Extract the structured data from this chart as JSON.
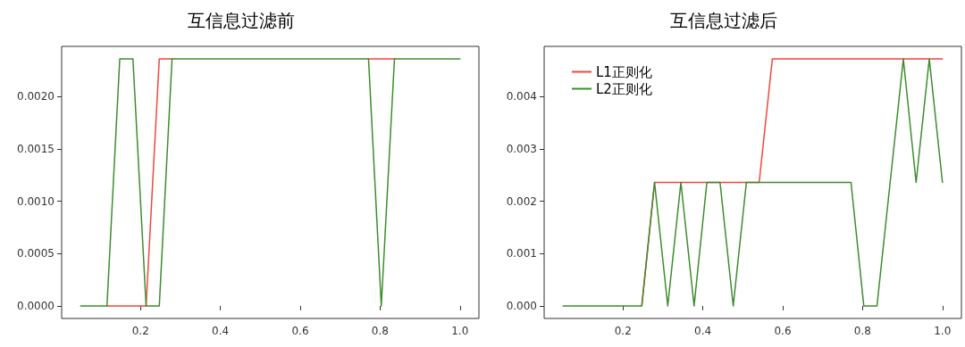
{
  "chart_data": [
    {
      "type": "line",
      "title": "互信息过滤前",
      "x": [
        0.05,
        0.083,
        0.116,
        0.148,
        0.181,
        0.214,
        0.247,
        0.279,
        0.312,
        0.345,
        0.378,
        0.41,
        0.443,
        0.476,
        0.509,
        0.541,
        0.574,
        0.607,
        0.64,
        0.672,
        0.705,
        0.738,
        0.771,
        0.803,
        0.836,
        0.869,
        0.902,
        0.934,
        0.967,
        1.0
      ],
      "series": [
        {
          "color": "#f0463c",
          "values": [
            null,
            null,
            0,
            0,
            0,
            0,
            0.00236,
            0.00236,
            null,
            null,
            null,
            null,
            null,
            null,
            null,
            null,
            null,
            null,
            null,
            null,
            null,
            null,
            0.00236,
            0.00236,
            0.00236,
            null,
            null,
            null,
            null,
            null
          ]
        },
        {
          "color": "#3d8c2e",
          "values": [
            0,
            0,
            0,
            0.00236,
            0.00236,
            0,
            0,
            0.00236,
            0.00236,
            0.00236,
            0.00236,
            0.00236,
            0.00236,
            0.00236,
            0.00236,
            0.00236,
            0.00236,
            0.00236,
            0.00236,
            0.00236,
            0.00236,
            0.00236,
            0.00236,
            0,
            0.00236,
            0.00236,
            0.00236,
            0.00236,
            0.00236,
            0.00236
          ]
        }
      ],
      "xlim": [
        0.0025,
        1.0475
      ],
      "ylim": [
        -0.00012,
        0.00248
      ],
      "xticks": [
        0.2,
        0.4,
        0.6,
        0.8,
        {
          "value": 1.0,
          "label": "1.0"
        }
      ],
      "yticks": [
        {
          "value": 0,
          "label": "0.0000"
        },
        {
          "value": 0.0005,
          "label": "0.0005"
        },
        {
          "value": 0.001,
          "label": "0.0010"
        },
        {
          "value": 0.0015,
          "label": "0.0015"
        },
        {
          "value": 0.002,
          "label": "0.0020"
        }
      ]
    },
    {
      "type": "line",
      "title": "互信息过滤后",
      "x": [
        0.05,
        0.083,
        0.116,
        0.148,
        0.181,
        0.214,
        0.247,
        0.279,
        0.312,
        0.345,
        0.378,
        0.41,
        0.443,
        0.476,
        0.509,
        0.541,
        0.574,
        0.607,
        0.64,
        0.672,
        0.705,
        0.738,
        0.771,
        0.803,
        0.836,
        0.869,
        0.902,
        0.934,
        0.967,
        1.0
      ],
      "series": [
        {
          "name": "L1正则化",
          "color": "#f0463c",
          "values": [
            null,
            null,
            null,
            null,
            null,
            null,
            0,
            0.00236,
            0.00236,
            0.00236,
            0.00236,
            0.00236,
            0.00236,
            0.00236,
            0.00236,
            0.00236,
            0.00472,
            0.00472,
            0.00472,
            0.00472,
            0.00472,
            0.00472,
            0.00472,
            0.00472,
            0.00472,
            0.00472,
            0.00472,
            0.00472,
            0.00472,
            0.00472
          ]
        },
        {
          "name": "L2正则化",
          "color": "#3d8c2e",
          "values": [
            0,
            0,
            0,
            0,
            0,
            0,
            0,
            0.00236,
            0,
            0.00236,
            0,
            0.00236,
            0.00236,
            0,
            0.00236,
            0.00236,
            0.00236,
            0.00236,
            0.00236,
            0.00236,
            0.00236,
            0.00236,
            0.00236,
            0,
            0,
            0.00236,
            0.00472,
            0.00236,
            0.00472,
            0.00236
          ]
        }
      ],
      "xlim": [
        0.0025,
        1.0475
      ],
      "ylim": [
        -0.00024,
        0.00496
      ],
      "xticks": [
        0.2,
        0.4,
        0.6,
        0.8,
        {
          "value": 1.0,
          "label": "1.0"
        }
      ],
      "yticks": [
        {
          "value": 0,
          "label": "0.000"
        },
        {
          "value": 0.001,
          "label": "0.001"
        },
        {
          "value": 0.002,
          "label": "0.002"
        },
        {
          "value": 0.003,
          "label": "0.003"
        },
        {
          "value": 0.004,
          "label": "0.004"
        }
      ],
      "legend": "top left"
    }
  ]
}
